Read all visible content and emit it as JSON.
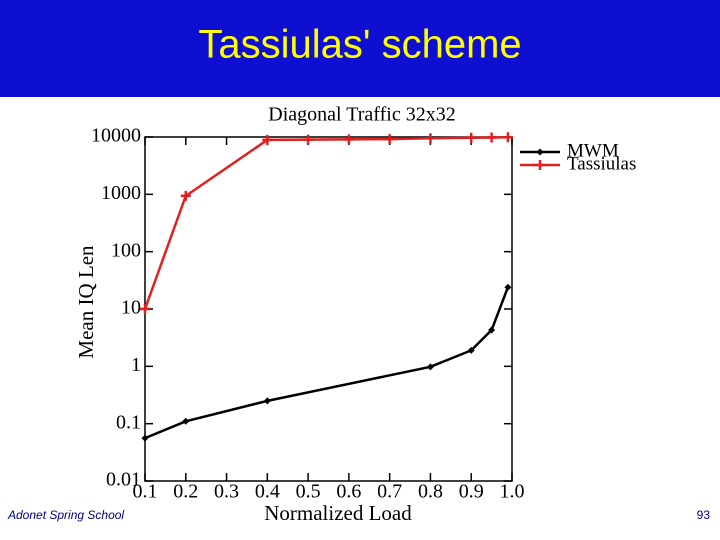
{
  "header": {
    "title": "Tassiulas' scheme"
  },
  "chart_data": {
    "type": "line",
    "title": "Diagonal Traffic 32x32",
    "x_label": "Normalized Load",
    "y_label": "Mean IQ Len",
    "log_y": true,
    "legend": "outside-upper-right",
    "xlim": [
      0.1,
      1.0
    ],
    "xticks": [
      0.1,
      0.2,
      0.3,
      0.4,
      0.5,
      0.6,
      0.7,
      0.8,
      0.9,
      {
        "value": 1,
        "label": "1.0"
      }
    ],
    "ylim": [
      0.01,
      10000
    ],
    "yticks": [
      0.01,
      0.1,
      1,
      10,
      100,
      1000,
      10000
    ],
    "series": [
      {
        "name": "MWM",
        "color": "#000000",
        "marker": "diamond",
        "x": [
          0.1,
          0.2,
          0.4,
          0.8,
          0.9,
          0.95,
          0.99
        ],
        "values": [
          0.056,
          0.11,
          0.25,
          0.98,
          1.9,
          4.3,
          24
        ]
      },
      {
        "name": "Tassiulas",
        "color": "#e02020",
        "marker": "plus",
        "x": [
          0.1,
          0.2,
          0.4,
          0.5,
          0.6,
          0.7,
          0.8,
          0.9,
          0.95,
          0.99
        ],
        "values": [
          10,
          940,
          8900,
          9000,
          9100,
          9200,
          9500,
          9700,
          9800,
          9900
        ]
      }
    ]
  },
  "footer": {
    "left": "Adonet Spring School",
    "page": 93
  }
}
